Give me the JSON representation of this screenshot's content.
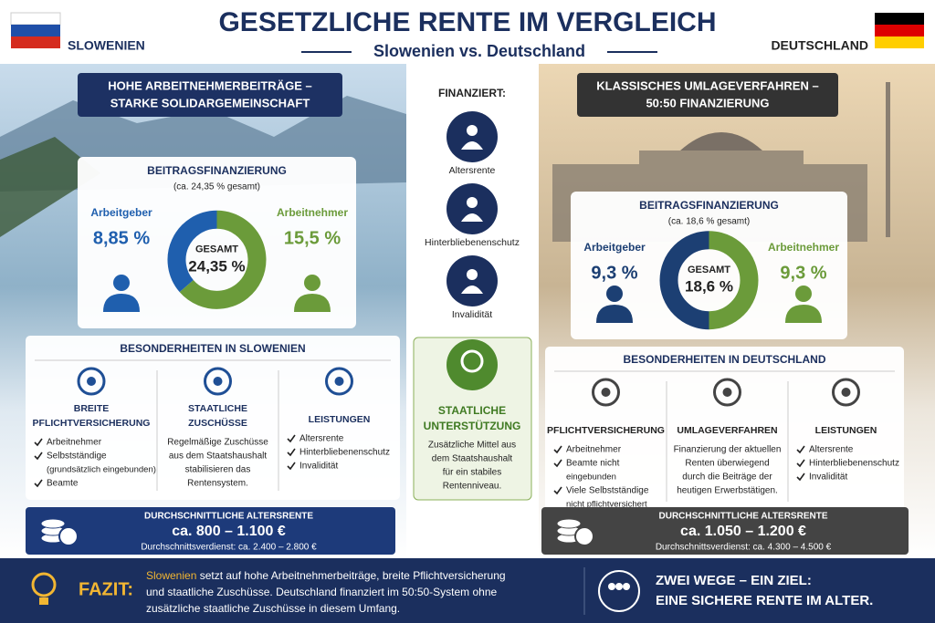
{
  "header": {
    "title": "GESETZLICHE RENTE IM VERGLEICH",
    "subtitle": "Slowenien vs. Deutschland",
    "left_country": "SLOWENIEN",
    "right_country": "DEUTSCHLAND"
  },
  "slovenia": {
    "banner": [
      "HOHE ARBEITNEHMERBEITRÄGE –",
      "STARKE SOLIDARGEMEINSCHAFT"
    ],
    "funding": {
      "title": "BEITRAGSFINANZIERUNG",
      "note": "(ca. 24,35 % gesamt)",
      "center_label": "GESAMT",
      "center_value": "24,35 %",
      "segments": [
        {
          "name": "Arbeitnehmer",
          "label": "15,5 %",
          "value": 15.5,
          "color": "#6b9b3a"
        },
        {
          "name": "Arbeitgeber",
          "label": "8,85 %",
          "value": 8.85,
          "color": "#1f5fae"
        }
      ]
    },
    "features": {
      "title": "BESONDERHEITEN IN SLOWENIEN",
      "columns": [
        {
          "title": [
            "BREITE",
            "PFLICHTVERSICHERUNG"
          ],
          "items": [
            [
              "Arbeitnehmer"
            ],
            [
              "Selbstständige",
              "(grundsätzlich eingebunden)"
            ],
            [
              "Beamte"
            ]
          ]
        },
        {
          "title": [
            "STAATLICHE",
            "ZUSCHÜSSE"
          ],
          "text": [
            "Regelmäßige Zuschüsse",
            "aus dem Staatshaushalt",
            "stabilisieren das",
            "Rentensystem."
          ]
        },
        {
          "title": [
            "LEISTUNGEN"
          ],
          "items": [
            [
              "Altersrente"
            ],
            [
              "Hinterbliebenenschutz"
            ],
            [
              "Invalidität"
            ]
          ]
        }
      ]
    },
    "pension": {
      "label": "DURCHSCHNITTLICHE ALTERSRENTE",
      "value": "ca. 800 – 1.100 €",
      "note": "Durchschnittsverdienst: ca. 2.400 – 2.800 €"
    }
  },
  "germany": {
    "banner": [
      "KLASSISCHES UMLAGEVERFAHREN –",
      "50:50 FINANZIERUNG"
    ],
    "funding": {
      "title": "BEITRAGSFINANZIERUNG",
      "note": "(ca. 18,6 % gesamt)",
      "center_label": "GESAMT",
      "center_value": "18,6 %",
      "segments": [
        {
          "name": "Arbeitnehmer",
          "label": "9,3 %",
          "value": 9.3,
          "color": "#6b9b3a"
        },
        {
          "name": "Arbeitgeber",
          "label": "9,3 %",
          "value": 9.3,
          "color": "#1c3f73"
        }
      ]
    },
    "features": {
      "title": "BESONDERHEITEN IN DEUTSCHLAND",
      "columns": [
        {
          "title": [
            "PFLICHTVERSICHERUNG"
          ],
          "items": [
            [
              "Arbeitnehmer"
            ],
            [
              "Beamte nicht",
              "eingebunden"
            ],
            [
              "Viele Selbstständige",
              "nicht pflichtversichert"
            ]
          ]
        },
        {
          "title": [
            "UMLAGEVERFAHREN"
          ],
          "text": [
            "Finanzierung der aktuellen",
            "Renten überwiegend",
            "durch die Beiträge der",
            "heutigen Erwerbstätigen."
          ]
        },
        {
          "title": [
            "LEISTUNGEN"
          ],
          "items": [
            [
              "Altersrente"
            ],
            [
              "Hinterbliebenenschutz"
            ],
            [
              "Invalidität"
            ]
          ]
        }
      ]
    },
    "pension": {
      "label": "DURCHSCHNITTLICHE ALTERSRENTE",
      "value": "ca. 1.050 – 1.200 €",
      "note": "Durchschnittsverdienst: ca. 4.300 – 4.500 €"
    }
  },
  "middle": {
    "heading": "FINANZIERT:",
    "items": [
      "Altersrente",
      "Hinterbliebenenschutz",
      "Invalidität"
    ],
    "state": {
      "title": [
        "STAATLICHE",
        "UNTERSTÜTZUNG"
      ],
      "text": [
        "Zusätzliche Mittel aus",
        "dem Staatshaushalt",
        "für ein stabiles",
        "Rentenniveau."
      ]
    }
  },
  "footer": {
    "label": "FAZIT:",
    "highlight": "Slowenien",
    "lines": [
      " setzt auf hohe Arbeitnehmerbeiträge, breite Pflichtversicherung",
      "und staatliche Zuschüsse. Deutschland finanziert im 50:50-System ohne",
      "zusätzliche staatliche Zuschüsse in diesem Umfang."
    ],
    "conclusion": [
      "ZWEI WEGE – EIN ZIEL:",
      "EINE SICHERE RENTE IM ALTER."
    ]
  }
}
